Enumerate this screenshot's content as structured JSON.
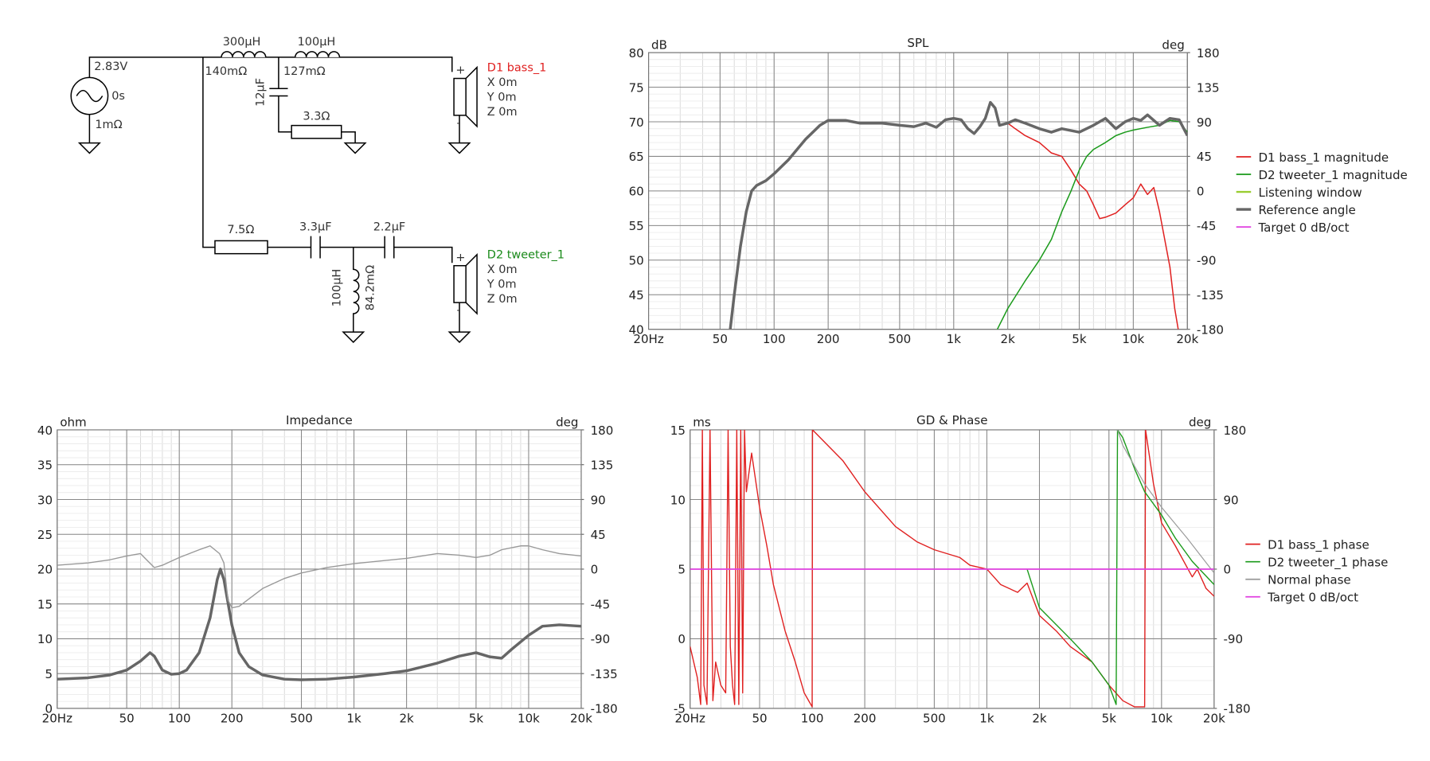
{
  "schematic": {
    "source": {
      "voltage": "2.83V",
      "delay": "0s",
      "resistance": "1mΩ"
    },
    "l1": {
      "value": "300µH",
      "resistance": "140mΩ"
    },
    "l2": {
      "value": "100µH",
      "resistance": "127mΩ"
    },
    "c1": "12µF",
    "r1": "3.3Ω",
    "r2": "7.5Ω",
    "c2": "3.3µF",
    "c3": "2.2µF",
    "l3": {
      "value": "100µH",
      "resistance": "84.2mΩ"
    },
    "plus": "+",
    "minus": "-",
    "drivers": [
      {
        "name": "D1 bass_1",
        "x": "X 0m",
        "y": "Y 0m",
        "z": "Z 0m",
        "color": "#e02020"
      },
      {
        "name": "D2 tweeter_1",
        "x": "X 0m",
        "y": "Y 0m",
        "z": "Z 0m",
        "color": "#1a8a1a"
      }
    ]
  },
  "chart_data": [
    {
      "type": "line",
      "title": "SPL",
      "ylabel": "dB",
      "y2label": "deg",
      "log_x": true,
      "grid": true,
      "legend": true,
      "xlim": [
        20,
        20000
      ],
      "xticks": [
        {
          "value": 20,
          "label": "20Hz"
        },
        50,
        100,
        200,
        500,
        {
          "value": 1000,
          "label": "1k"
        },
        {
          "value": 2000,
          "label": "2k"
        },
        {
          "value": 5000,
          "label": "5k"
        },
        {
          "value": 10000,
          "label": "10k"
        },
        {
          "value": 20000,
          "label": "20k"
        }
      ],
      "ylim": [
        40,
        80
      ],
      "yticks": [
        40,
        45,
        50,
        55,
        60,
        65,
        70,
        75,
        80
      ],
      "y2lim": [
        -180,
        180
      ],
      "y2ticks": [
        -180,
        -135,
        -90,
        -45,
        0,
        45,
        90,
        135,
        180
      ],
      "series": [
        {
          "name": "D1 bass_1 magnitude",
          "color": "#e02020",
          "line_width": 1.3,
          "x": [
            57,
            60,
            65,
            70,
            75,
            80,
            90,
            100,
            120,
            150,
            180,
            200,
            250,
            300,
            400,
            500,
            600,
            700,
            800,
            900,
            1000,
            1100,
            1200,
            1300,
            1400,
            1500,
            1600,
            1700,
            1800,
            2000,
            2200,
            2500,
            3000,
            3500,
            4000,
            4500,
            5000,
            5500,
            6000,
            6500,
            7000,
            8000,
            9000,
            10000,
            11000,
            12000,
            13000,
            14000,
            16000,
            17000,
            17800
          ],
          "values": [
            40,
            45,
            52,
            57,
            60,
            60.8,
            61.5,
            62.5,
            64.5,
            67.5,
            69.5,
            70.2,
            70.2,
            69.8,
            69.8,
            69.5,
            69.3,
            69.8,
            69.2,
            70.3,
            70.5,
            70.3,
            69,
            68.3,
            69.3,
            70.5,
            72.8,
            72,
            69.5,
            69.8,
            69,
            68,
            67,
            65.5,
            65,
            63,
            61,
            60,
            58,
            56,
            56.2,
            56.8,
            58,
            59,
            61,
            59.5,
            60.5,
            57,
            49,
            43,
            40
          ]
        },
        {
          "name": "D2 tweeter_1 magnitude",
          "color": "#1a9a1a",
          "line_width": 1.3,
          "x": [
            1750,
            2000,
            2500,
            3000,
            3500,
            4000,
            4500,
            5000,
            5500,
            6000,
            7000,
            8000,
            9000,
            10000,
            12000,
            14000,
            16000,
            18000,
            20000
          ],
          "values": [
            40,
            43,
            47,
            50,
            53,
            57,
            60,
            63,
            65,
            66,
            67,
            68,
            68.5,
            68.8,
            69.2,
            69.5,
            70.2,
            70,
            68.5
          ]
        },
        {
          "name": "Listening window",
          "color": "#9acd32",
          "line_width": 2
        },
        {
          "name": "Reference angle",
          "color": "#666666",
          "line_width": 3,
          "x": [
            57,
            60,
            65,
            70,
            75,
            80,
            90,
            100,
            120,
            150,
            180,
            200,
            250,
            300,
            400,
            500,
            600,
            700,
            800,
            900,
            1000,
            1100,
            1200,
            1300,
            1400,
            1500,
            1600,
            1700,
            1800,
            2000,
            2200,
            2500,
            3000,
            3500,
            4000,
            5000,
            6000,
            7000,
            8000,
            9000,
            10000,
            11000,
            12000,
            14000,
            16000,
            18000,
            20000
          ],
          "values": [
            40,
            45,
            52,
            57,
            60,
            60.8,
            61.5,
            62.5,
            64.5,
            67.5,
            69.5,
            70.2,
            70.2,
            69.8,
            69.8,
            69.5,
            69.3,
            69.8,
            69.2,
            70.3,
            70.5,
            70.3,
            69,
            68.3,
            69.3,
            70.5,
            72.8,
            72,
            69.5,
            69.8,
            70.3,
            69.8,
            69,
            68.5,
            69,
            68.5,
            69.5,
            70.5,
            69,
            70,
            70.5,
            70.2,
            71,
            69.5,
            70.5,
            70.3,
            68
          ]
        },
        {
          "name": "Target 0 dB/oct",
          "color": "#e040e0",
          "line_width": 1.3
        }
      ]
    },
    {
      "type": "line",
      "title": "Impedance",
      "ylabel": "ohm",
      "y2label": "deg",
      "log_x": true,
      "grid": true,
      "legend": false,
      "xlim": [
        20,
        20000
      ],
      "xticks": [
        {
          "value": 20,
          "label": "20Hz"
        },
        50,
        100,
        200,
        500,
        {
          "value": 1000,
          "label": "1k"
        },
        {
          "value": 2000,
          "label": "2k"
        },
        {
          "value": 5000,
          "label": "5k"
        },
        {
          "value": 10000,
          "label": "10k"
        },
        {
          "value": 20000,
          "label": "20k"
        }
      ],
      "ylim": [
        0,
        40
      ],
      "yticks": [
        0,
        5,
        10,
        15,
        20,
        25,
        30,
        35,
        40
      ],
      "y2lim": [
        -180,
        180
      ],
      "y2ticks": [
        -180,
        -135,
        -90,
        -45,
        0,
        45,
        90,
        135,
        180
      ],
      "series": [
        {
          "color": "#666666",
          "line_width": 3,
          "x": [
            20,
            30,
            40,
            50,
            60,
            68,
            72,
            80,
            90,
            100,
            110,
            130,
            150,
            165,
            172,
            180,
            200,
            220,
            250,
            300,
            400,
            500,
            700,
            1000,
            1500,
            2000,
            3000,
            4000,
            5000,
            6000,
            7000,
            8000,
            10000,
            12000,
            15000,
            20000
          ],
          "values": [
            4.2,
            4.4,
            4.8,
            5.5,
            6.8,
            8,
            7.5,
            5.5,
            4.9,
            5,
            5.5,
            8,
            13,
            18.5,
            20,
            18.5,
            12,
            8,
            6,
            4.8,
            4.2,
            4.1,
            4.2,
            4.5,
            5,
            5.4,
            6.5,
            7.5,
            8,
            7.4,
            7.2,
            8.5,
            10.5,
            11.8,
            12,
            11.8
          ]
        },
        {
          "color": "#999999",
          "line_width": 1.2,
          "axis": "y2",
          "x": [
            20,
            30,
            40,
            50,
            60,
            65,
            72,
            80,
            100,
            130,
            150,
            170,
            180,
            190,
            200,
            220,
            300,
            400,
            500,
            700,
            1000,
            2000,
            3000,
            4000,
            5000,
            6000,
            7000,
            9000,
            10000,
            12000,
            15000,
            20000
          ],
          "values": [
            5,
            8,
            12,
            17,
            20,
            12,
            2,
            5,
            15,
            25,
            30,
            20,
            8,
            -40,
            -50,
            -48,
            -25,
            -12,
            -5,
            2,
            7,
            14,
            20,
            18,
            15,
            18,
            25,
            30,
            30,
            25,
            20,
            17
          ]
        }
      ]
    },
    {
      "type": "line",
      "title": "GD & Phase",
      "ylabel": "ms",
      "y2label": "deg",
      "log_x": true,
      "grid": true,
      "legend": true,
      "xlim": [
        20,
        20000
      ],
      "xticks": [
        {
          "value": 20,
          "label": "20Hz"
        },
        50,
        100,
        200,
        500,
        {
          "value": 1000,
          "label": "1k"
        },
        {
          "value": 2000,
          "label": "2k"
        },
        {
          "value": 5000,
          "label": "5k"
        },
        {
          "value": 10000,
          "label": "10k"
        },
        {
          "value": 20000,
          "label": "20k"
        }
      ],
      "ylim": [
        -5,
        15
      ],
      "yticks": [
        -5,
        0,
        5,
        10,
        15
      ],
      "y2lim": [
        -180,
        180
      ],
      "y2ticks": [
        -180,
        -90,
        0,
        90,
        180
      ],
      "series": [
        {
          "name": "D1 bass_1 phase",
          "color": "#e02020",
          "line_width": 1.2,
          "axis": "y2",
          "x": [
            20,
            22,
            23,
            23.5,
            24,
            25,
            26,
            27,
            28,
            30,
            32,
            33,
            34,
            35,
            36,
            37,
            38,
            39,
            40,
            41,
            42,
            45,
            50,
            55,
            60,
            70,
            80,
            90,
            100,
            100.5,
            150,
            200,
            300,
            400,
            500,
            700,
            800,
            1000,
            1200,
            1500,
            1700,
            2000,
            2500,
            3000,
            4000,
            5000,
            6000,
            7000,
            8000,
            8100,
            9000,
            10000,
            12000,
            15000,
            16000,
            18000,
            20000
          ],
          "values": [
            -100,
            -140,
            -175,
            180,
            -150,
            -175,
            180,
            -170,
            -120,
            -150,
            -160,
            180,
            -100,
            -150,
            -175,
            180,
            -175,
            180,
            -160,
            180,
            100,
            150,
            80,
            30,
            -20,
            -80,
            -120,
            -160,
            -178,
            180,
            140,
            100,
            55,
            35,
            25,
            15,
            5,
            0,
            -20,
            -30,
            -18,
            -60,
            -80,
            -100,
            -120,
            -150,
            -170,
            -178,
            -178,
            180,
            110,
            60,
            30,
            -10,
            0,
            -25,
            -35
          ]
        },
        {
          "name": "D2 tweeter_1 phase",
          "color": "#1a9a1a",
          "line_width": 1.2,
          "axis": "y2",
          "x": [
            1700,
            2000,
            3000,
            4000,
            5000,
            5500,
            5600,
            6000,
            7000,
            8000,
            10000,
            12000,
            15000,
            20000
          ],
          "values": [
            0,
            -50,
            -90,
            -120,
            -150,
            -175,
            180,
            170,
            130,
            100,
            70,
            40,
            10,
            -20
          ]
        },
        {
          "name": "Normal phase",
          "color": "#999999",
          "line_width": 1,
          "axis": "y2",
          "x": [
            5600,
            6000,
            8000,
            10000,
            14000,
            20000
          ],
          "values": [
            180,
            160,
            110,
            80,
            40,
            -5
          ]
        },
        {
          "name": "Target 0 dB/oct",
          "color": "#e040e0",
          "line_width": 1.5,
          "axis": "y2",
          "x": [
            20,
            20000
          ],
          "values": [
            0,
            0
          ]
        }
      ]
    }
  ]
}
